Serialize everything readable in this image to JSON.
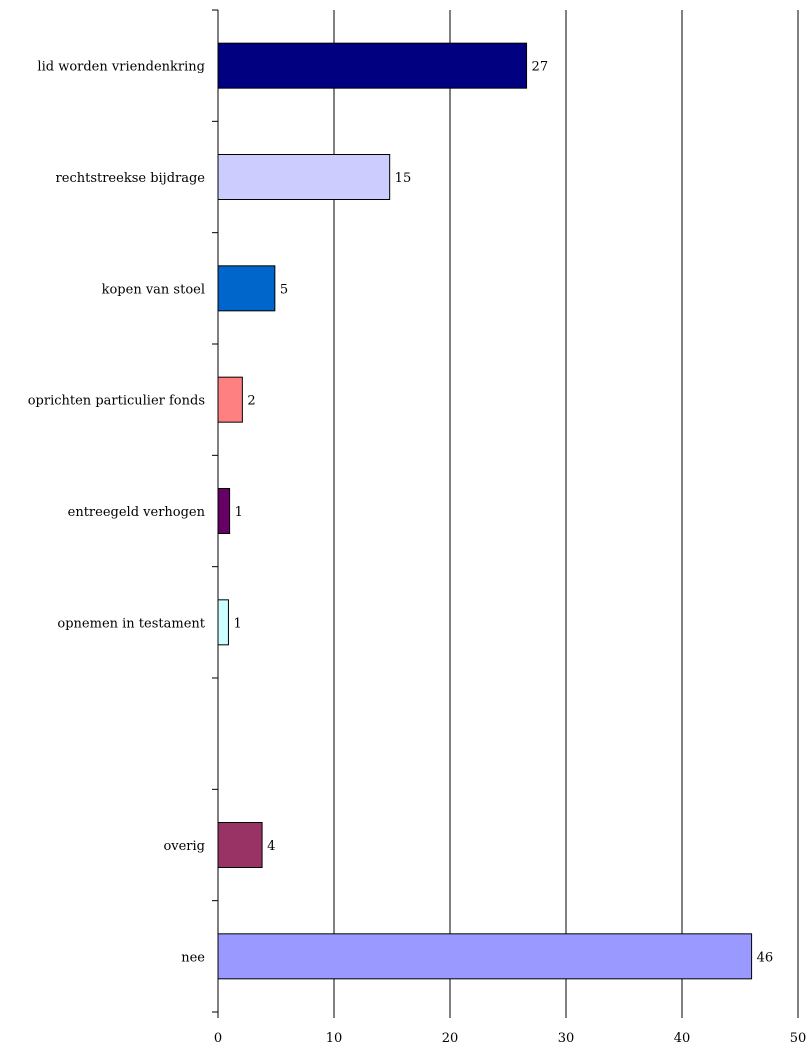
{
  "chart_data": {
    "type": "bar",
    "orientation": "horizontal",
    "title": "",
    "xlabel": "",
    "ylabel": "",
    "xlim": [
      0,
      50
    ],
    "x_ticks": [
      0,
      10,
      20,
      30,
      40,
      50
    ],
    "grid": "vertical",
    "legend": "none",
    "categories": [
      "lid worden vriendenkring",
      "rechtstreekse bijdrage",
      "kopen van stoel",
      "oprichten particulier fonds",
      "entreegeld verhogen",
      "opnemen in testament",
      "",
      "overig",
      "nee"
    ],
    "values": [
      26.6,
      14.8,
      4.9,
      2.1,
      1.0,
      0.9,
      null,
      3.8,
      46.0
    ],
    "value_labels": [
      "27",
      "15",
      "5",
      "2",
      "1",
      "1",
      "",
      "4",
      "46"
    ],
    "colors": [
      "#000080",
      "#ccccff",
      "#0066cc",
      "#ff8080",
      "#660066",
      "#ccffff",
      "",
      "#993366",
      "#9999ff"
    ]
  }
}
